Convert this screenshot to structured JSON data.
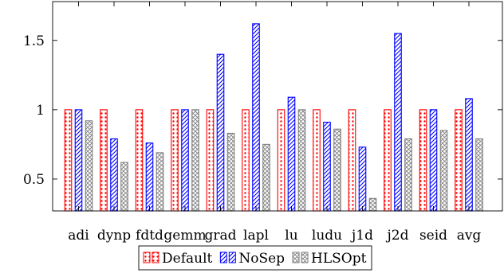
{
  "chart_data": {
    "type": "bar",
    "title": "",
    "xlabel": "",
    "ylabel": "",
    "categories": [
      "adi",
      "dynp",
      "fdtd",
      "gemm",
      "grad",
      "lapl",
      "lu",
      "ludu",
      "j1d",
      "j2d",
      "seid",
      "avg"
    ],
    "series": [
      {
        "name": "Default",
        "pattern": "dots",
        "color": "#ff0000",
        "values": [
          1.0,
          1.0,
          1.0,
          1.0,
          1.0,
          1.0,
          1.0,
          1.0,
          1.0,
          1.0,
          1.0,
          1.0
        ]
      },
      {
        "name": "NoSep",
        "pattern": "north-east-lines",
        "color": "#0000ff",
        "values": [
          1.0,
          0.79,
          0.76,
          1.0,
          1.4,
          1.62,
          1.09,
          0.91,
          0.73,
          1.55,
          1.0,
          1.08
        ]
      },
      {
        "name": "HLSOpt",
        "pattern": "crosshatch",
        "color": "#7f7f7f",
        "values": [
          0.92,
          0.62,
          0.69,
          1.0,
          0.83,
          0.75,
          1.0,
          0.86,
          0.36,
          0.79,
          0.85,
          0.79
        ]
      }
    ],
    "ylim": [
      0.27,
      1.78
    ],
    "yticks": [
      0.5,
      1.0,
      1.5
    ],
    "ytick_labels": [
      "0.5",
      "1",
      "1.5"
    ],
    "grid": false,
    "legend_position": "bottom-center"
  }
}
